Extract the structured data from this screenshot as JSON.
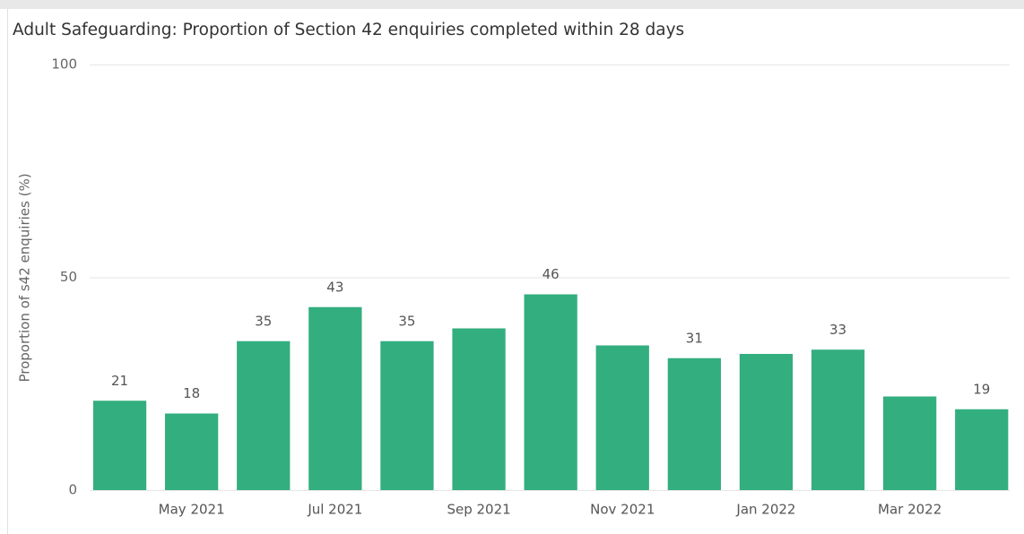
{
  "chart_data": {
    "type": "bar",
    "title": "Adult Safeguarding: Proportion of Section 42 enquiries completed within 28 days",
    "y_label": "Proportion of s42 enquiries (%)",
    "categories": [
      null,
      "May 2021",
      null,
      "Jul 2021",
      null,
      "Sep 2021",
      null,
      "Nov 2021",
      null,
      "Jan 2022",
      null,
      "Mar 2022",
      null
    ],
    "values": [
      21,
      18,
      35,
      43,
      35,
      38,
      46,
      34,
      31,
      32,
      33,
      22,
      19
    ],
    "value_labels": [
      "21",
      "18",
      "35",
      "43",
      "35",
      null,
      "46",
      null,
      "31",
      null,
      "33",
      null,
      "19"
    ],
    "color": "#33ae7f",
    "ylim": [
      0,
      100
    ],
    "yticks": [
      0,
      50,
      100
    ],
    "grid": true
  }
}
